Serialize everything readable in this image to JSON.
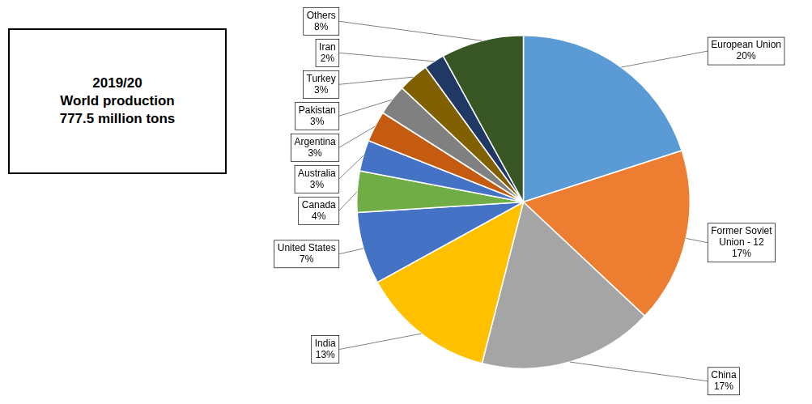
{
  "chart_data": {
    "type": "pie",
    "title": "2019/20\nWorld production\n777.5 million tons",
    "categories": [
      "European Union",
      "Former Soviet\nUnion - 12",
      "China",
      "India",
      "United States",
      "Canada",
      "Australia",
      "Argentina",
      "Pakistan",
      "Turkey",
      "Iran",
      "Others"
    ],
    "values": [
      20,
      17,
      17,
      13,
      7,
      4,
      3,
      3,
      3,
      3,
      2,
      8
    ],
    "value_labels": [
      "20%",
      "17%",
      "17%",
      "13%",
      "7%",
      "4%",
      "3%",
      "3%",
      "3%",
      "3%",
      "2%",
      "8%"
    ],
    "colors": [
      "#5B9BD5",
      "#ED7D31",
      "#A5A5A5",
      "#FFC000",
      "#4472C4",
      "#70AD47",
      "#4472C4",
      "#C55A11",
      "#808080",
      "#806000",
      "#203864",
      "#375623"
    ],
    "data_labels": true
  }
}
